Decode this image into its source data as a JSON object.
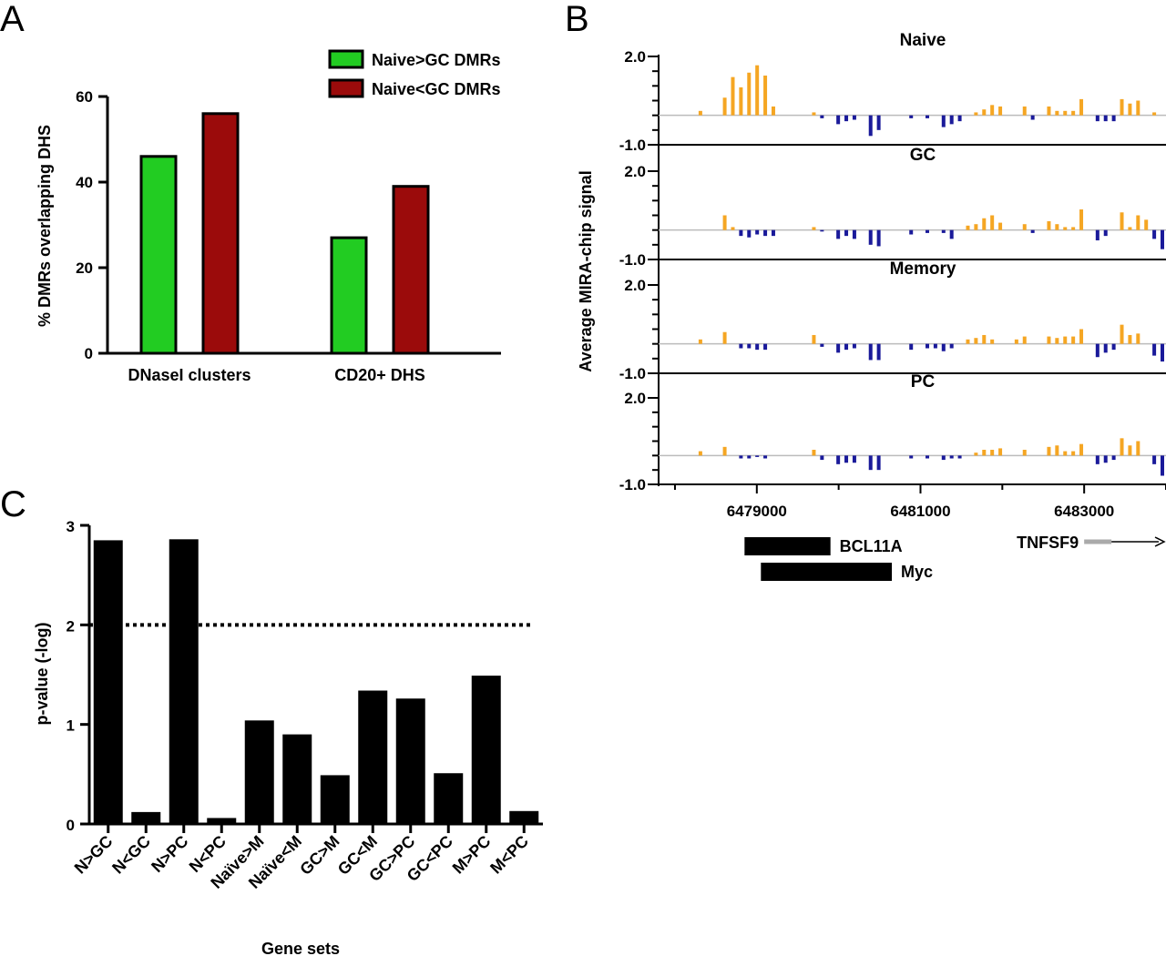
{
  "chart_data": [
    {
      "panel": "A",
      "type": "bar",
      "title": "",
      "xlabel": "",
      "ylabel": "% DMRs overlapping DHS",
      "ylim": [
        0,
        60
      ],
      "yticks": [
        "0",
        "20",
        "40",
        "60"
      ],
      "categories": [
        "DNaseI clusters",
        "CD20+ DHS"
      ],
      "series": [
        {
          "name": "Naive>GC DMRs",
          "color": "#22cc22",
          "values": [
            46,
            27
          ]
        },
        {
          "name": "Naive<GC DMRs",
          "color": "#9b0b0b",
          "values": [
            56,
            39
          ]
        }
      ],
      "legend_position": "top-right"
    },
    {
      "panel": "B",
      "type": "bar",
      "ylabel": "Average MIRA-chip signal",
      "ylim": [
        -1.0,
        2.0
      ],
      "yticks": [
        "2.0",
        "-1.0"
      ],
      "x_range": [
        6477800,
        6484000
      ],
      "xticks": [
        "6479000",
        "6481000",
        "6483000"
      ],
      "positive_color": "#f5a623",
      "negative_color": "#1a1a9a",
      "tracks": [
        {
          "name": "Naive",
          "values": [
            0,
            0.15,
            0,
            0,
            0.6,
            1.3,
            0.95,
            1.45,
            1.7,
            1.35,
            0.3,
            0,
            0,
            0,
            0,
            0.1,
            -0.1,
            0,
            -0.3,
            -0.2,
            -0.15,
            0,
            -0.7,
            -0.5,
            0,
            0,
            0,
            -0.1,
            0,
            -0.1,
            0,
            -0.4,
            -0.3,
            -0.2,
            0,
            0.1,
            0.2,
            0.35,
            0.3,
            0,
            0,
            0.3,
            -0.15,
            0,
            0.3,
            0.15,
            0.15,
            0.15,
            0.55,
            0,
            -0.2,
            -0.2,
            -0.2,
            0.55,
            0.4,
            0.5,
            0,
            0.1,
            0
          ]
        },
        {
          "name": "GC",
          "values": [
            0,
            0,
            0,
            0,
            0.5,
            0.1,
            -0.2,
            -0.25,
            -0.15,
            -0.2,
            -0.2,
            0,
            0,
            0,
            0,
            0.1,
            -0.05,
            0,
            -0.3,
            -0.2,
            -0.3,
            0,
            -0.5,
            -0.55,
            0,
            0,
            0,
            -0.15,
            0,
            -0.1,
            0,
            -0.1,
            -0.3,
            0,
            0.15,
            0.2,
            0.4,
            0.5,
            0.25,
            0,
            0,
            0.2,
            -0.1,
            0,
            0.3,
            0.2,
            0.1,
            0.1,
            0.7,
            0,
            -0.35,
            -0.2,
            0,
            0.6,
            0.1,
            0.5,
            0.35,
            -0.3,
            -0.65
          ]
        },
        {
          "name": "Memory",
          "values": [
            0,
            0.15,
            0,
            0,
            0.4,
            0,
            -0.15,
            -0.15,
            -0.2,
            -0.2,
            0,
            0,
            0,
            0,
            0,
            0.3,
            -0.1,
            0,
            -0.3,
            -0.2,
            -0.15,
            0,
            -0.55,
            -0.55,
            0,
            0,
            0,
            -0.2,
            0,
            -0.15,
            -0.15,
            -0.25,
            -0.15,
            0,
            0.15,
            0.2,
            0.3,
            0.15,
            0,
            0,
            0.15,
            0.25,
            0,
            0,
            0.25,
            0.2,
            0.25,
            0.25,
            0.5,
            0,
            -0.45,
            -0.3,
            -0.2,
            0.65,
            0.3,
            0.35,
            0,
            -0.4,
            -0.6
          ]
        },
        {
          "name": "PC",
          "values": [
            0,
            0.15,
            0,
            0,
            0.3,
            0,
            -0.1,
            -0.1,
            -0.05,
            -0.1,
            0,
            0,
            0,
            0,
            0,
            0.2,
            -0.15,
            0,
            -0.3,
            -0.25,
            -0.25,
            0,
            -0.5,
            -0.5,
            0,
            0,
            0,
            -0.1,
            0,
            -0.1,
            0,
            -0.15,
            -0.1,
            -0.1,
            0,
            0.1,
            0.2,
            0.2,
            0.25,
            0,
            0,
            0.2,
            0,
            0,
            0.3,
            0.35,
            0.15,
            0.15,
            0.4,
            0,
            -0.3,
            -0.25,
            -0.15,
            0.6,
            0.35,
            0.5,
            0,
            -0.3,
            -0.7
          ]
        }
      ],
      "annotations": {
        "features": [
          {
            "label": "BCL11A",
            "start": 6478850,
            "end": 6479900
          },
          {
            "label": "Myc",
            "start": 6479050,
            "end": 6480650
          }
        ],
        "gene": {
          "label": "TNFSF9",
          "start": 6483000,
          "direction": "forward"
        }
      }
    },
    {
      "panel": "C",
      "type": "bar",
      "title": "",
      "xlabel": "Gene sets",
      "ylabel": "p-value (-log)",
      "ylim": [
        0,
        3
      ],
      "yticks": [
        "0",
        "1",
        "2",
        "3"
      ],
      "categories": [
        "N>GC",
        "N<GC",
        "N>PC",
        "N<PC",
        "Naïve>M",
        "Naïve<M",
        "GC>M",
        "GC<M",
        "GC>PC",
        "GC<PC",
        "M>PC",
        "M<PC"
      ],
      "values": [
        2.85,
        0.12,
        2.86,
        0.06,
        1.04,
        0.9,
        0.49,
        1.34,
        1.26,
        0.51,
        1.49,
        0.13
      ],
      "threshold": 2.0,
      "color": "#000000"
    }
  ],
  "panel_letters": {
    "a": "A",
    "b": "B",
    "c": "C"
  }
}
